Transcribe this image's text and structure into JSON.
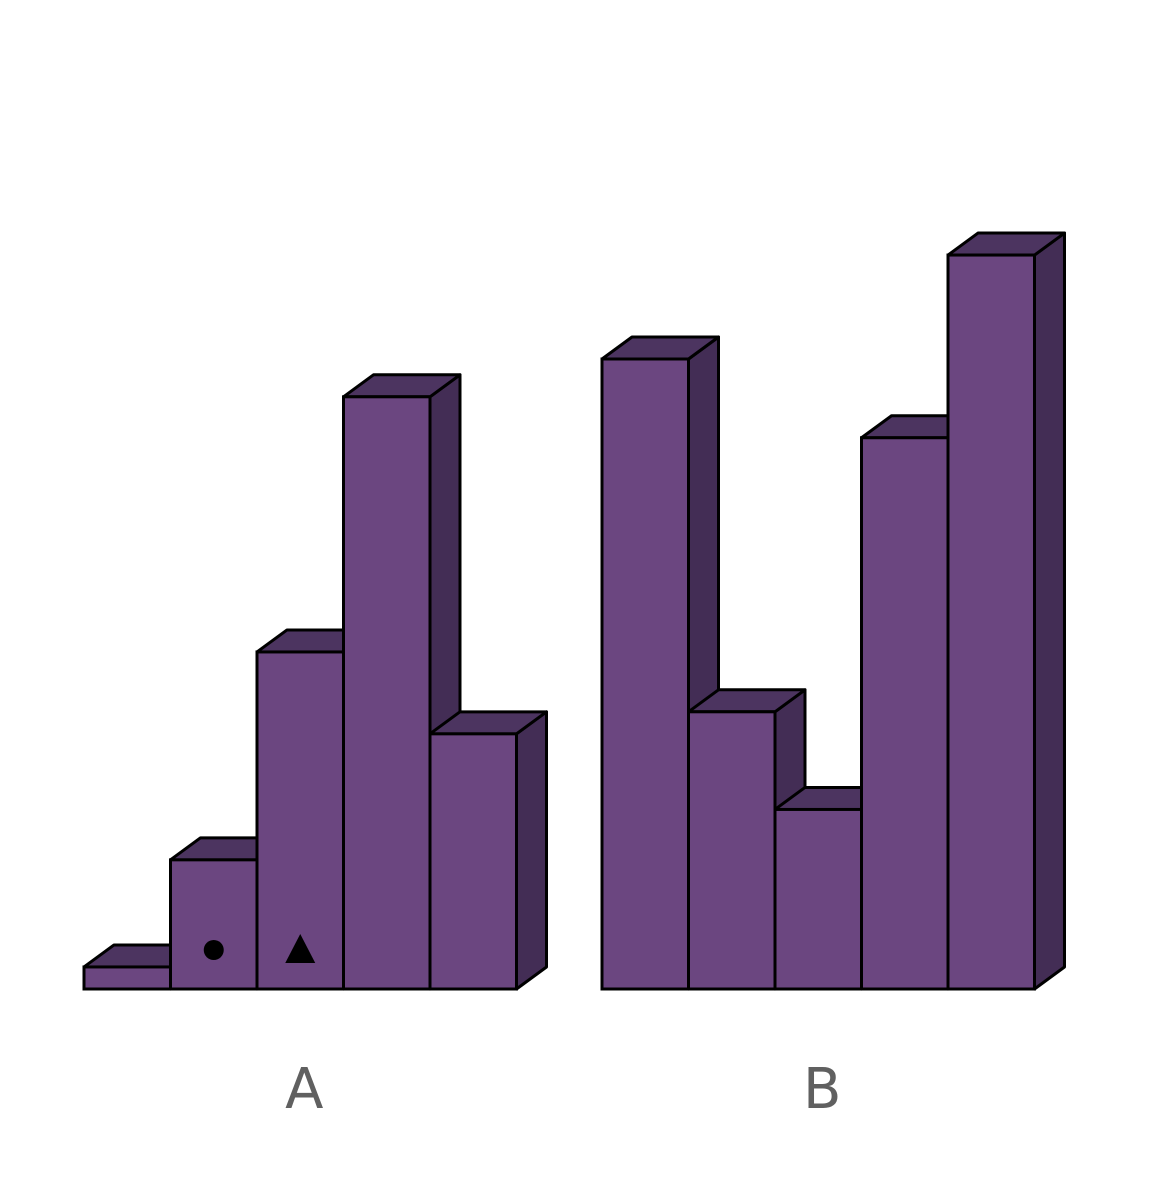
{
  "chart_data": [
    {
      "type": "bar",
      "style": "3d",
      "group_label": "A",
      "values": [
        0.7,
        4.1,
        10.7,
        18.8,
        8.1
      ],
      "markers": [
        "",
        "circle",
        "triangle",
        "",
        ""
      ],
      "color": "#6b4680",
      "top_color": "#4c3460",
      "side_color": "#432d55"
    },
    {
      "type": "bar",
      "style": "3d",
      "group_label": "B",
      "values": [
        20.0,
        8.8,
        5.7,
        17.5,
        23.3
      ],
      "markers": [
        "",
        "",
        "",
        "",
        ""
      ],
      "color": "#6b4680",
      "top_color": "#4c3460",
      "side_color": "#432d55"
    }
  ]
}
